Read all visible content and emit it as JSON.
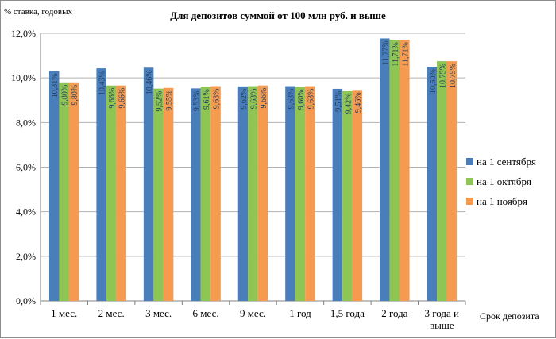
{
  "chart_data": {
    "type": "bar",
    "title": "Для депозитов суммой от 100 млн руб. и выше",
    "ylabel": "% ставка, годовых",
    "xlabel": "Срок депозита",
    "ylim": [
      0,
      12
    ],
    "yticks": [
      0,
      2,
      4,
      6,
      8,
      10,
      12
    ],
    "ytick_labels": [
      "0,0%",
      "2,0%",
      "4,0%",
      "6,0%",
      "8,0%",
      "10,0%",
      "12,0%"
    ],
    "grid": true,
    "legend_position": "right",
    "categories": [
      "1 мес.",
      "2 мес.",
      "3 мес.",
      "6 мес.",
      "9 мес.",
      "1 год",
      "1,5 года",
      "2 года",
      "3 года и выше"
    ],
    "series": [
      {
        "name": "на 1 сентября",
        "color": "#4a7ebb",
        "values": [
          10.31,
          10.43,
          10.46,
          9.53,
          9.62,
          9.63,
          9.51,
          11.77,
          10.5
        ],
        "labels": [
          "10,31%",
          "10,43%",
          "10,46%",
          "9,53%",
          "9,62%",
          "9,63%",
          "9,51%",
          "11,77%",
          "10,50%"
        ]
      },
      {
        "name": "на 1 октября",
        "color": "#8fc552",
        "values": [
          9.8,
          9.66,
          9.52,
          9.61,
          9.63,
          9.6,
          9.42,
          11.71,
          10.75
        ],
        "labels": [
          "9,80%",
          "9,66%",
          "9,52%",
          "9,61%",
          "9,63%",
          "9,60%",
          "9,42%",
          "11,71%",
          "10,75%"
        ]
      },
      {
        "name": "на 1 ноября",
        "color": "#f59a4f",
        "values": [
          9.8,
          9.66,
          9.55,
          9.63,
          9.66,
          9.63,
          9.46,
          11.71,
          10.75
        ],
        "labels": [
          "9,80%",
          "9,66%",
          "9,55%",
          "9,63%",
          "9,66%",
          "9,63%",
          "9,46%",
          "11,71%",
          "10,75%"
        ]
      }
    ]
  }
}
